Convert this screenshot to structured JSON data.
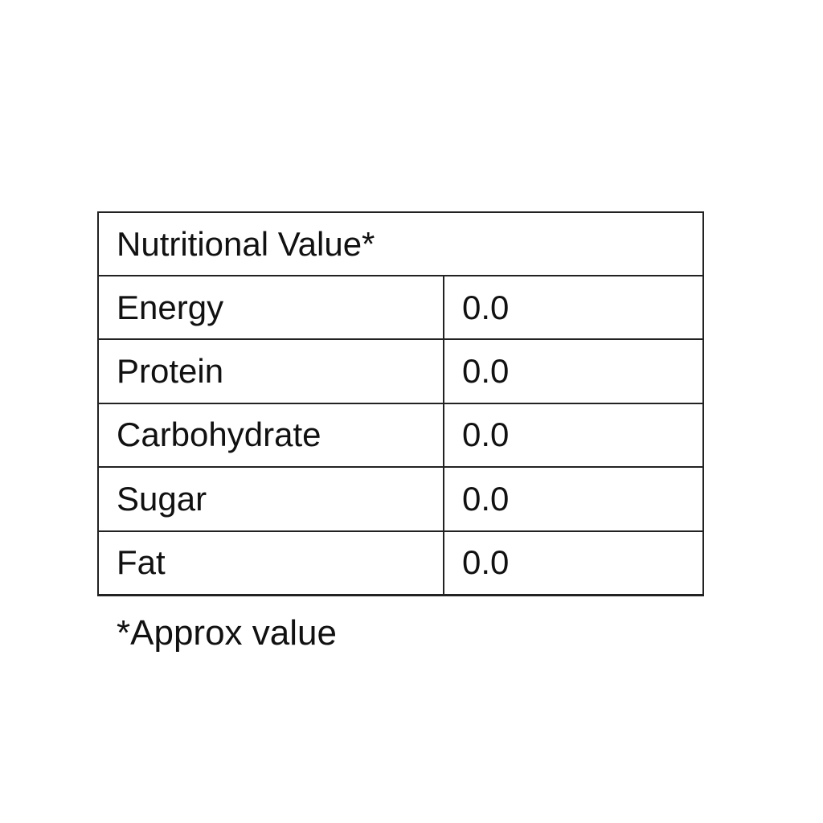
{
  "table": {
    "title": "Nutritional Value*",
    "rows": [
      [
        "Energy",
        "0.0"
      ],
      [
        "Protein",
        "0.0"
      ],
      [
        "Carbohydrate",
        "0.0"
      ],
      [
        "Sugar",
        "0.0"
      ],
      [
        "Fat",
        "0.0"
      ]
    ]
  },
  "footnote": "*Approx value"
}
